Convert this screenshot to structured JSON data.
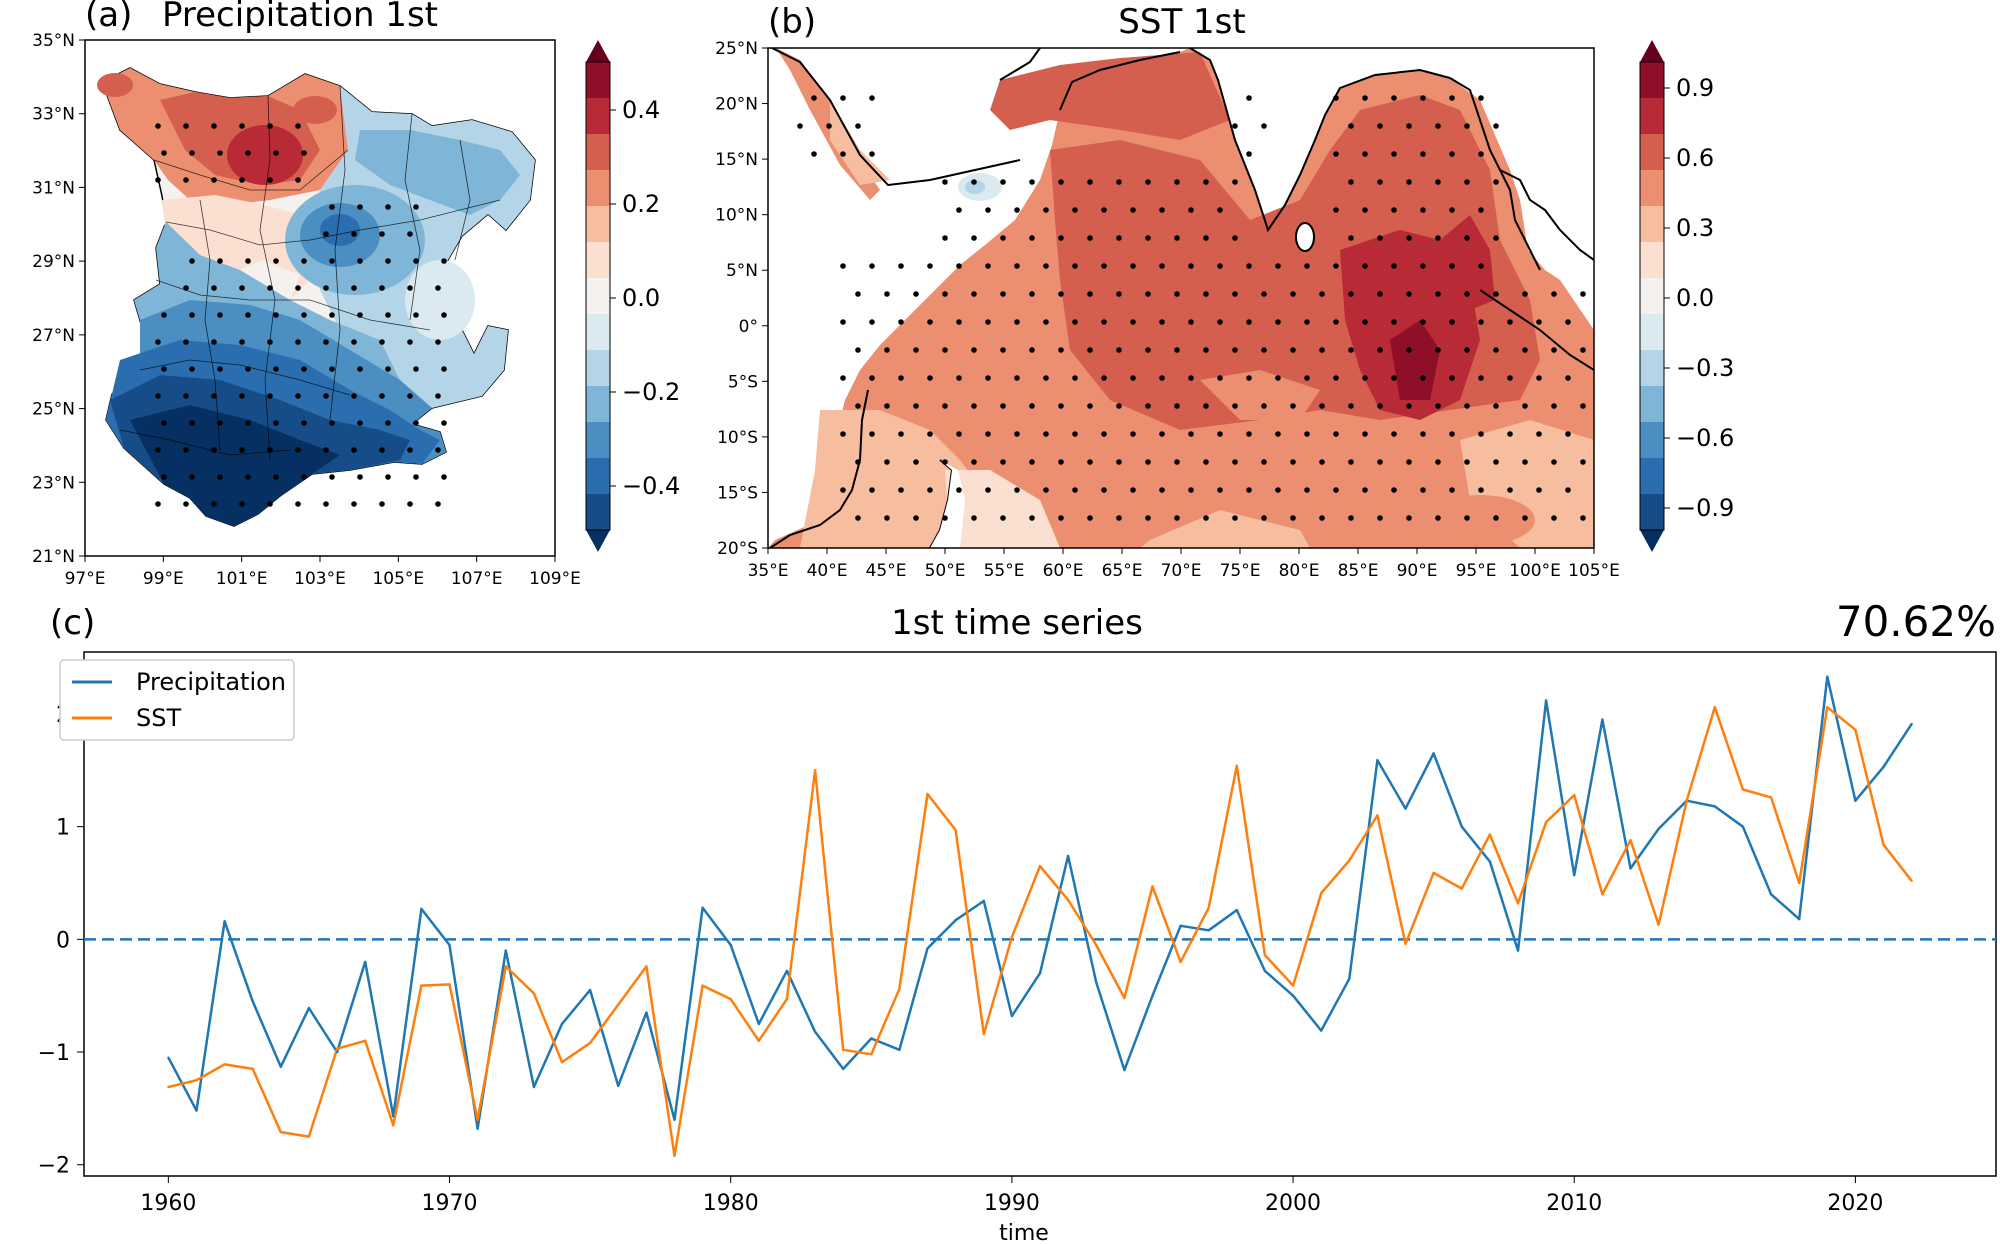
{
  "colors": {
    "precip": "#1f77b4",
    "sst": "#ff7f0e",
    "zero_line": "#1f77b4",
    "dots": "#000000",
    "rdbu": [
      "#053061",
      "#164d89",
      "#2b6eb0",
      "#4a8ec2",
      "#7fb6d7",
      "#b4d5e7",
      "#dbe9f1",
      "#f5f1ee",
      "#fbe0d1",
      "#f7bd9f",
      "#ec8f70",
      "#d55f4f",
      "#b82a36",
      "#8f0f28",
      "#67001f"
    ]
  },
  "panel_a": {
    "label": "(a)",
    "title": "Precipitation 1st",
    "lat_ticks": [
      "35°N",
      "33°N",
      "31°N",
      "29°N",
      "27°N",
      "25°N",
      "23°N",
      "21°N"
    ],
    "lon_ticks": [
      "97°E",
      "99°E",
      "101°E",
      "103°E",
      "105°E",
      "107°E",
      "109°E"
    ],
    "colorbar_ticks": [
      "0.4",
      "0.2",
      "0.0",
      "−0.2",
      "−0.4"
    ]
  },
  "panel_b": {
    "label": "(b)",
    "title": "SST 1st",
    "lat_ticks": [
      "25°N",
      "20°N",
      "15°N",
      "10°N",
      "5°N",
      "0°",
      "5°S",
      "10°S",
      "15°S",
      "20°S"
    ],
    "lon_ticks": [
      "35°E",
      "40°E",
      "45°E",
      "50°E",
      "55°E",
      "60°E",
      "65°E",
      "70°E",
      "75°E",
      "80°E",
      "85°E",
      "90°E",
      "95°E",
      "100°E",
      "105°E"
    ],
    "colorbar_ticks": [
      "0.9",
      "0.6",
      "0.3",
      "0.0",
      "−0.3",
      "−0.6",
      "−0.9"
    ]
  },
  "panel_c": {
    "label": "(c)",
    "title": "1st time series",
    "variance": "70.62%"
  },
  "chart_data": {
    "type": "line",
    "title": "1st time series",
    "xlabel": "time",
    "ylabel": "",
    "xlim": [
      1957,
      2025
    ],
    "ylim": [
      -2.1,
      2.55
    ],
    "x_ticks": [
      1960,
      1970,
      1980,
      1990,
      2000,
      2010,
      2020
    ],
    "y_ticks": [
      -2,
      -1,
      0,
      1,
      2
    ],
    "legend_location": "top-left",
    "reference_line": {
      "y": 0,
      "style": "dashed"
    },
    "x": [
      1960,
      1961,
      1962,
      1963,
      1964,
      1965,
      1966,
      1967,
      1968,
      1969,
      1970,
      1971,
      1972,
      1973,
      1974,
      1975,
      1976,
      1977,
      1978,
      1979,
      1980,
      1981,
      1982,
      1983,
      1984,
      1985,
      1986,
      1987,
      1988,
      1989,
      1990,
      1991,
      1992,
      1993,
      1994,
      1995,
      1996,
      1997,
      1998,
      1999,
      2000,
      2001,
      2002,
      2003,
      2004,
      2005,
      2006,
      2007,
      2008,
      2009,
      2010,
      2011,
      2012,
      2013,
      2014,
      2015,
      2016,
      2017,
      2018,
      2019,
      2020,
      2021,
      2022
    ],
    "series": [
      {
        "name": "Precipitation",
        "values": [
          -1.05,
          -1.52,
          0.16,
          -0.55,
          -1.13,
          -0.61,
          -1.0,
          -0.2,
          -1.57,
          0.27,
          -0.05,
          -1.68,
          -0.1,
          -1.31,
          -0.75,
          -0.45,
          -1.3,
          -0.65,
          -1.6,
          0.28,
          -0.05,
          -0.75,
          -0.28,
          -0.82,
          -1.15,
          -0.88,
          -0.98,
          -0.08,
          0.17,
          0.34,
          -0.68,
          -0.3,
          0.74,
          -0.38,
          -1.16,
          -0.5,
          0.12,
          0.08,
          0.26,
          -0.28,
          -0.5,
          -0.81,
          -0.35,
          1.59,
          1.16,
          1.65,
          1.0,
          0.69,
          -0.1,
          2.12,
          0.57,
          1.95,
          0.63,
          0.98,
          1.23,
          1.18,
          1.0,
          0.4,
          0.18,
          2.33,
          1.23,
          1.53,
          1.91
        ]
      },
      {
        "name": "SST",
        "values": [
          -1.31,
          -1.25,
          -1.11,
          -1.15,
          -1.71,
          -1.75,
          -0.97,
          -0.9,
          -1.65,
          -0.41,
          -0.4,
          -1.6,
          -0.24,
          -0.48,
          -1.09,
          -0.92,
          -0.58,
          -0.24,
          -1.92,
          -0.41,
          -0.53,
          -0.9,
          -0.53,
          1.5,
          -0.98,
          -1.02,
          -0.44,
          1.29,
          0.97,
          -0.84,
          0.02,
          0.65,
          0.35,
          -0.05,
          -0.52,
          0.47,
          -0.2,
          0.28,
          1.54,
          -0.14,
          -0.41,
          0.41,
          0.7,
          1.1,
          -0.04,
          0.59,
          0.45,
          0.93,
          0.32,
          1.04,
          1.28,
          0.4,
          0.88,
          0.13,
          1.23,
          2.06,
          1.33,
          1.26,
          0.5,
          2.06,
          1.86,
          0.84,
          0.52
        ]
      }
    ]
  }
}
